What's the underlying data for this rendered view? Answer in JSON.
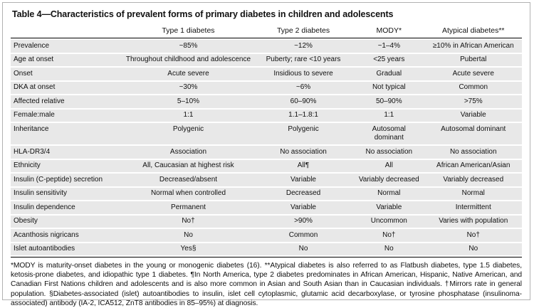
{
  "table": {
    "title": "Table 4—Characteristics of prevalent forms of primary diabetes in children and adolescents",
    "columns": [
      "",
      "Type 1 diabetes",
      "Type 2 diabetes",
      "MODY*",
      "Atypical diabetes**"
    ],
    "rows": [
      {
        "label": "Prevalence",
        "values": [
          "~85%",
          "~12%",
          "~1–4%",
          "≥10% in African American"
        ]
      },
      {
        "label": "Age at onset",
        "values": [
          "Throughout childhood and adolescence",
          "Puberty; rare <10 years",
          "<25 years",
          "Pubertal"
        ]
      },
      {
        "label": "Onset",
        "values": [
          "Acute severe",
          "Insidious to severe",
          "Gradual",
          "Acute severe"
        ]
      },
      {
        "label": "DKA at onset",
        "values": [
          "~30%",
          "~6%",
          "Not typical",
          "Common"
        ]
      },
      {
        "label": "Affected relative",
        "values": [
          "5–10%",
          "60–90%",
          "50–90%",
          ">75%"
        ]
      },
      {
        "label": "Female:male",
        "values": [
          "1:1",
          "1.1–1.8:1",
          "1:1",
          "Variable"
        ]
      },
      {
        "label": "Inheritance",
        "values": [
          "Polygenic",
          "Polygenic",
          "Autosomal\ndominant",
          "Autosomal dominant"
        ]
      },
      {
        "label": "HLA-DR3/4",
        "values": [
          "Association",
          "No association",
          "No association",
          "No association"
        ]
      },
      {
        "label": "Ethnicity",
        "values": [
          "All, Caucasian at highest risk",
          "All¶",
          "All",
          "African American/Asian"
        ]
      },
      {
        "label": "Insulin (C-peptide) secretion",
        "values": [
          "Decreased/absent",
          "Variable",
          "Variably decreased",
          "Variably decreased"
        ]
      },
      {
        "label": "Insulin sensitivity",
        "values": [
          "Normal when controlled",
          "Decreased",
          "Normal",
          "Normal"
        ]
      },
      {
        "label": "Insulin dependence",
        "values": [
          "Permanent",
          "Variable",
          "Variable",
          "Intermittent"
        ]
      },
      {
        "label": "Obesity",
        "values": [
          "No†",
          ">90%",
          "Uncommon",
          "Varies with population"
        ]
      },
      {
        "label": "Acanthosis nigricans",
        "values": [
          "No",
          "Common",
          "No†",
          "No†"
        ]
      },
      {
        "label": "Islet autoantibodies",
        "values": [
          "Yes§",
          "No",
          "No",
          "No"
        ]
      }
    ],
    "footnote": "*MODY is maturity-onset diabetes in the young or monogenic diabetes (16). **Atypical diabetes is also referred to as Flatbush diabetes, type 1.5 diabetes, ketosis-prone diabetes, and idiopathic type 1 diabetes. ¶In North America, type 2 diabetes predominates in African American, Hispanic, Native American, and Canadian First Nations children and adolescents and is also more common in Asian and South Asian than in Caucasian individuals. †Mirrors rate in general population. §Diabetes-associated (islet) autoantibodies to insulin, islet cell cytoplasmic, glutamic acid decarboxylase, or tyrosine phosphatase (insulinoma-associated) antibody (IA-2, ICA512, ZnT8 antibodies in 85–95%) at diagnosis."
  }
}
